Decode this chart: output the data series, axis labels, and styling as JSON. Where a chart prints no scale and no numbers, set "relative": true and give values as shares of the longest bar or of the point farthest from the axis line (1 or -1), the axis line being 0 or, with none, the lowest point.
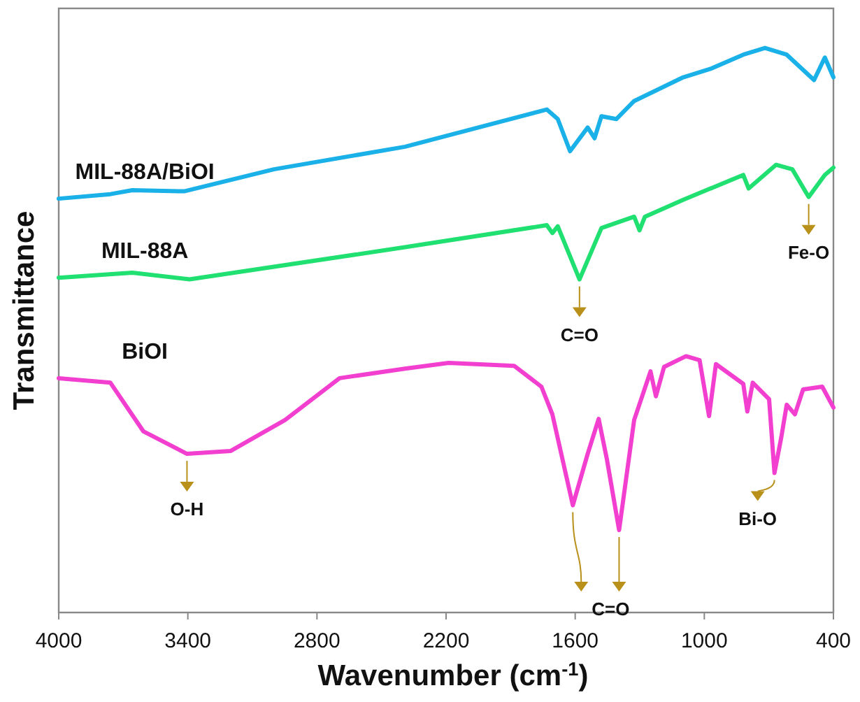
{
  "chart_data": {
    "type": "line",
    "relative": true,
    "xlabel": "Wavenumber (cm$^{-1}$)",
    "ylabel": "Transmittance",
    "xlim": [
      4000,
      400
    ],
    "xticks": [
      4000,
      3400,
      2800,
      2200,
      1600,
      1000,
      400
    ],
    "grid": false,
    "series": [
      {
        "name": "MIL-88A/BiOI",
        "color": "#1ab0e8",
        "x": [
          4000,
          3760,
          3658,
          3417,
          3000,
          2391,
          1732,
          1681,
          1624,
          1542,
          1510,
          1478,
          1409,
          1326,
          1098,
          971,
          819,
          718,
          617,
          490,
          440,
          400
        ],
        "values": [
          0.733,
          0.741,
          0.748,
          0.746,
          0.785,
          0.825,
          0.891,
          0.874,
          0.817,
          0.859,
          0.84,
          0.879,
          0.874,
          0.906,
          0.948,
          0.963,
          0.988,
          1,
          0.988,
          0.943,
          0.983,
          0.948
        ]
      },
      {
        "name": "MIL-88A",
        "color": "#1fe070",
        "x": [
          4000,
          3658,
          3392,
          2391,
          1732,
          1706,
          1681,
          1580,
          1478,
          1326,
          1301,
          1276,
          1098,
          819,
          794,
          667,
          591,
          515,
          440,
          400
        ],
        "values": [
          0.593,
          0.602,
          0.59,
          0.647,
          0.686,
          0.672,
          0.684,
          0.59,
          0.681,
          0.701,
          0.677,
          0.701,
          0.731,
          0.775,
          0.751,
          0.793,
          0.785,
          0.736,
          0.775,
          0.788
        ]
      },
      {
        "name": "BiOI",
        "color": "#f23fcf",
        "x": [
          4000,
          3760,
          3607,
          3404,
          3202,
          2948,
          2695,
          2391,
          2188,
          1884,
          1757,
          1706,
          1611,
          1542,
          1491,
          1453,
          1396,
          1326,
          1250,
          1225,
          1187,
          1085,
          1022,
          978,
          946,
          819,
          800,
          775,
          699,
          674,
          642,
          617,
          579,
          541,
          452,
          400
        ],
        "values": [
          0.415,
          0.407,
          0.321,
          0.281,
          0.286,
          0.341,
          0.415,
          0.432,
          0.442,
          0.437,
          0.4,
          0.351,
          0.19,
          0.281,
          0.343,
          0.272,
          0.146,
          0.341,
          0.427,
          0.383,
          0.435,
          0.454,
          0.447,
          0.348,
          0.44,
          0.405,
          0.356,
          0.407,
          0.378,
          0.247,
          0.311,
          0.368,
          0.351,
          0.395,
          0.4,
          0.363
        ]
      }
    ],
    "annotations": [
      {
        "text": "O-H",
        "x": 3404,
        "y": 0.281
      },
      {
        "text": "C=O",
        "x": 1580,
        "y": 0.59
      },
      {
        "text": "Fe-O",
        "x": 515,
        "y": 0.736
      },
      {
        "text": "C=O",
        "x": 1396,
        "y": 0.146
      },
      {
        "text": "Bi-O",
        "x": 674,
        "y": 0.247
      }
    ]
  }
}
